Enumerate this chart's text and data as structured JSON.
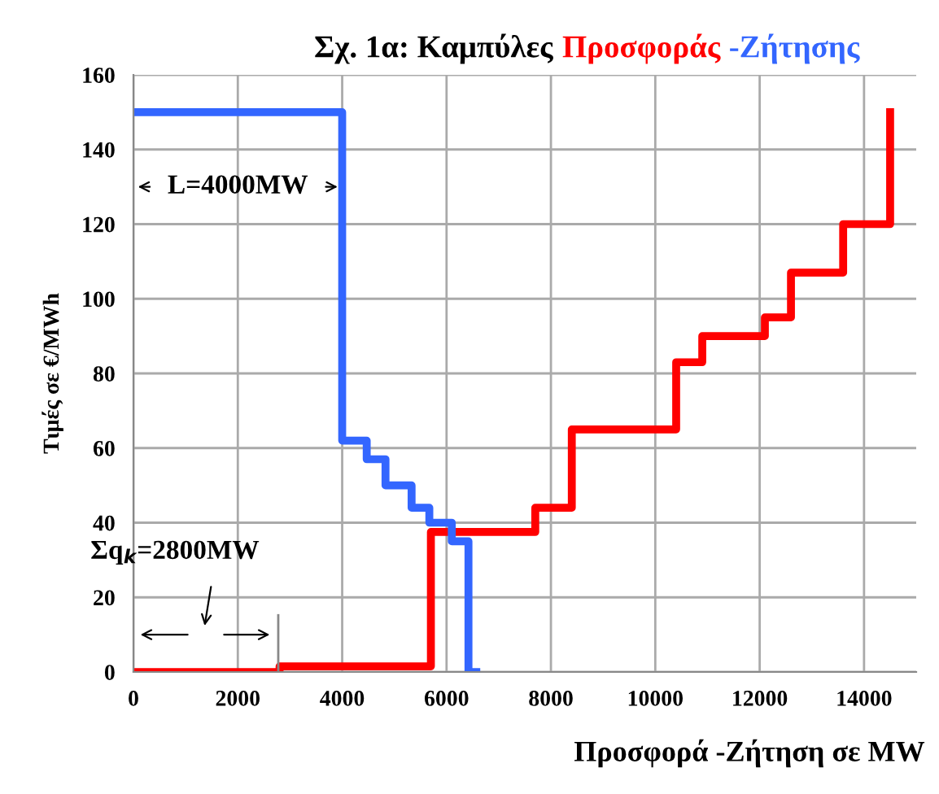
{
  "chart_data": {
    "type": "step",
    "title": "Σχ. 1α: Καμπύλες",
    "xlabel": "Προσφορά -Ζήτηση σε MW",
    "ylabel": "Τιμές σε €/MWh",
    "series": [
      {
        "name": "Προσφοράς",
        "color": "#ff0000",
        "x": [
          0,
          2800,
          5700,
          7700,
          8400,
          10400,
          10900,
          12100,
          12600,
          13600,
          14500,
          14500
        ],
        "values": [
          0,
          1.5,
          37.5,
          44,
          65,
          83,
          90,
          95,
          107,
          120,
          150,
          150
        ]
      },
      {
        "name": "-Ζήτησης",
        "color": "#3366ff",
        "x": [
          0,
          4000,
          4470,
          4830,
          5330,
          5670,
          6100,
          6420,
          6570
        ],
        "values": [
          150,
          62,
          57,
          50,
          44,
          40,
          35,
          0,
          0
        ]
      }
    ],
    "annotations": [
      {
        "text": "L=4000MW",
        "x": 4000,
        "y": 130
      },
      "Σq$_{k}$=2800MW"
    ],
    "xlim": [
      0,
      15000
    ],
    "xticks": [
      0,
      2000,
      4000,
      6000,
      8000,
      10000,
      12000,
      14000
    ],
    "ylim": [
      0,
      160
    ],
    "yticks": [
      0,
      20,
      40,
      60,
      80,
      100,
      120,
      140,
      160
    ],
    "grid": true,
    "legend": false,
    "line_style": "solid",
    "marker": "none"
  }
}
